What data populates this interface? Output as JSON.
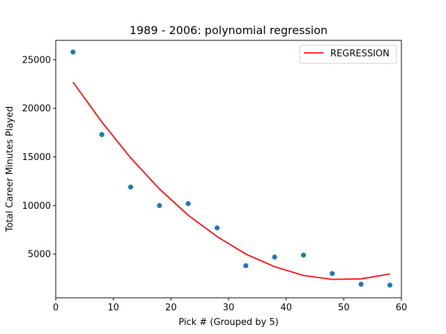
{
  "chart_data": {
    "type": "scatter",
    "title": "1989 - 2006: polynomial regression",
    "xlabel": "Pick # (Grouped by 5)",
    "ylabel": "Total Career Minutes Played",
    "xlim": [
      0,
      60
    ],
    "ylim": [
      500,
      27000
    ],
    "xticks": [
      0,
      10,
      20,
      30,
      40,
      50,
      60
    ],
    "yticks": [
      5000,
      10000,
      15000,
      20000,
      25000
    ],
    "grid": false,
    "legend_position": "top-right",
    "series": [
      {
        "type": "scatter",
        "color": "#1f77b4",
        "x": [
          3,
          8,
          13,
          18,
          23,
          28,
          33,
          38,
          43,
          48,
          53,
          58
        ],
        "y": [
          25800,
          17300,
          11900,
          10000,
          10200,
          7700,
          3800,
          4700,
          4900,
          3000,
          1900,
          1800
        ]
      },
      {
        "type": "line",
        "name": "REGRESSION",
        "color": "#ff0000",
        "x": [
          3,
          8,
          13,
          18,
          23,
          28,
          33,
          38,
          43,
          48,
          53,
          58
        ],
        "y": [
          22700,
          18600,
          14900,
          11700,
          9000,
          6800,
          5000,
          3700,
          2800,
          2400,
          2450,
          2950
        ]
      }
    ]
  }
}
